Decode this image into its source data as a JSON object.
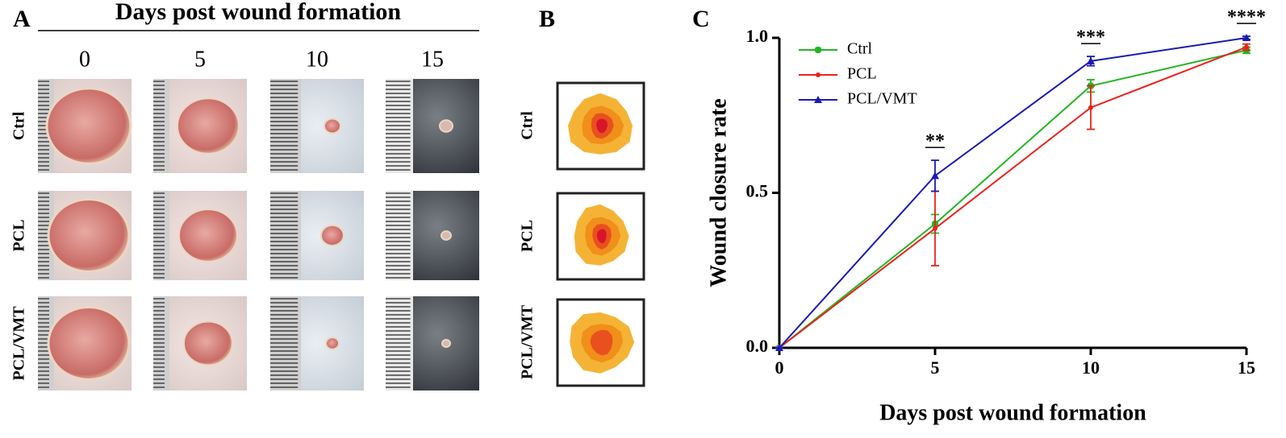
{
  "panel_a": {
    "label": "A",
    "title": "Days post wound formation",
    "days": [
      "0",
      "5",
      "10",
      "15"
    ],
    "rows": [
      "Ctrl",
      "PCL",
      "PCL/VMT"
    ]
  },
  "panel_b": {
    "label": "B",
    "rows": [
      "Ctrl",
      "PCL",
      "PCL/VMT"
    ]
  },
  "chart_data": {
    "type": "line",
    "label": "C",
    "xlabel": "Days post wound formation",
    "ylabel": "Wound closure rate",
    "x": [
      0,
      5,
      10,
      15
    ],
    "xlim": [
      0,
      15
    ],
    "xticks": [
      0,
      5,
      10,
      15
    ],
    "ylim": [
      0,
      1
    ],
    "yticks": [
      {
        "value": 0,
        "label": "0.0"
      },
      {
        "value": 0.5,
        "label": "0.5"
      },
      {
        "value": 1,
        "label": "1.0"
      }
    ],
    "legend": "upper left",
    "series": [
      {
        "name": "Ctrl",
        "color": "#22b522",
        "marker": "square-circle",
        "values": [
          0,
          0.4,
          0.845,
          0.96
        ],
        "errors": [
          0,
          0.03,
          0.02,
          0.01
        ]
      },
      {
        "name": "PCL",
        "color": "#e8231c",
        "marker": "dot",
        "values": [
          0,
          0.385,
          0.775,
          0.97
        ],
        "errors": [
          0,
          0.12,
          0.07,
          0.01
        ]
      },
      {
        "name": "PCL/VMT",
        "color": "#1a1ab5",
        "marker": "triangle",
        "values": [
          0,
          0.555,
          0.925,
          1.0
        ],
        "errors": [
          0,
          0.05,
          0.015,
          0.005
        ]
      }
    ],
    "annotations": [
      {
        "x": 5,
        "text": "**"
      },
      {
        "x": 10,
        "text": "***"
      },
      {
        "x": 15,
        "text": "****"
      }
    ]
  }
}
